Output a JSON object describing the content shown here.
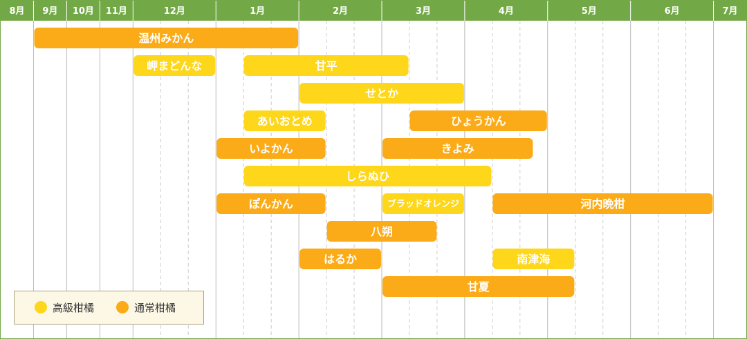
{
  "colors": {
    "header": "#72a846",
    "border": "#72a846",
    "grid_solid": "#bbbbbb",
    "grid_dashed": "#cccccc",
    "premium": "#fed61a",
    "regular": "#fbab17",
    "legend_bg": "#fdf8e6",
    "legend_border": "#a7a07c"
  },
  "chart_data": {
    "type": "timeline",
    "columns": [
      "8月",
      "9月",
      "10月",
      "11月",
      "12月",
      "1月",
      "2月",
      "3月",
      "4月",
      "5月",
      "6月",
      "7月"
    ],
    "column_weights": [
      1,
      1,
      1,
      1,
      2.5,
      2.5,
      2.5,
      2.5,
      2.5,
      2.5,
      2.5,
      1
    ],
    "categories": {
      "premium": "高級柑橘",
      "regular": "通常柑橘"
    },
    "bars": [
      {
        "label": "温州みかん",
        "category": "regular",
        "start": 1,
        "end": 6.0,
        "row": 0
      },
      {
        "label": "岬まどんな",
        "category": "premium",
        "start": 4,
        "end": 5.0,
        "row": 1
      },
      {
        "label": "甘平",
        "category": "premium",
        "start": 5.33,
        "end": 7.33,
        "row": 1
      },
      {
        "label": "せとか",
        "category": "premium",
        "start": 6,
        "end": 8.0,
        "row": 2
      },
      {
        "label": "あいおとめ",
        "category": "premium",
        "start": 5.33,
        "end": 6.33,
        "row": 3
      },
      {
        "label": "ひょうかん",
        "category": "regular",
        "start": 7.33,
        "end": 9.0,
        "row": 3
      },
      {
        "label": "いよかん",
        "category": "regular",
        "start": 5,
        "end": 6.33,
        "row": 4
      },
      {
        "label": "きよみ",
        "category": "regular",
        "start": 7,
        "end": 8.83,
        "row": 4
      },
      {
        "label": "しらぬひ",
        "category": "premium",
        "start": 5.33,
        "end": 8.33,
        "row": 5
      },
      {
        "label": "ぽんかん",
        "category": "regular",
        "start": 5,
        "end": 6.33,
        "row": 6
      },
      {
        "label": "ブラッドオレンジ",
        "category": "premium",
        "start": 7,
        "end": 8.0,
        "row": 6
      },
      {
        "label": "河内晩柑",
        "category": "regular",
        "start": 8.33,
        "end": 11.0,
        "row": 6
      },
      {
        "label": "八朔",
        "category": "regular",
        "start": 6.33,
        "end": 7.67,
        "row": 7
      },
      {
        "label": "はるか",
        "category": "regular",
        "start": 6,
        "end": 7.0,
        "row": 8
      },
      {
        "label": "南津海",
        "category": "premium",
        "start": 8.33,
        "end": 9.33,
        "row": 8
      },
      {
        "label": "甘夏",
        "category": "regular",
        "start": 7,
        "end": 9.33,
        "row": 9
      }
    ]
  }
}
